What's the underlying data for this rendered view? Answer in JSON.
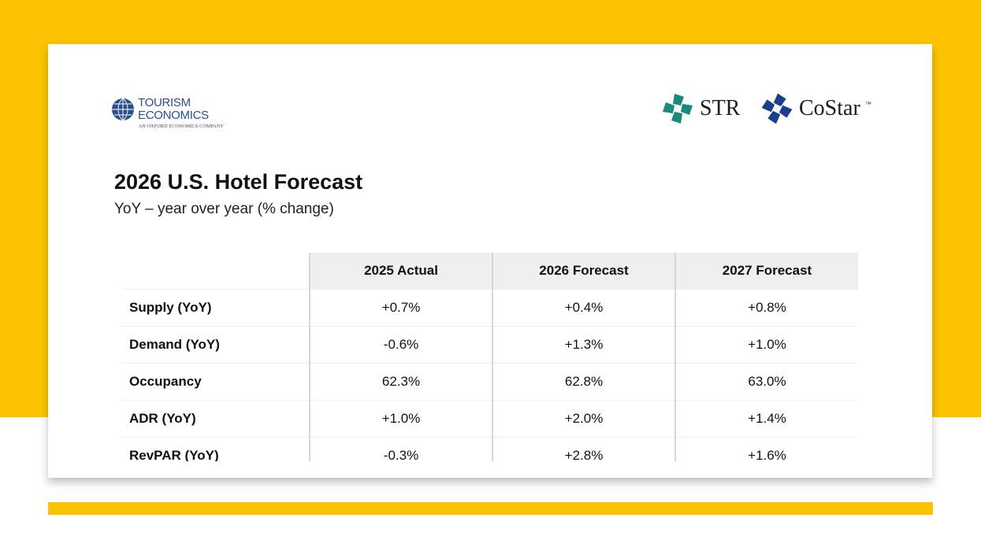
{
  "header": {
    "left_logo": {
      "line1": "TOURISM",
      "line2": "ECONOMICS",
      "tagline": "AN OXFORD ECONOMICS COMPANY"
    },
    "right_logos": [
      {
        "text": "STR"
      },
      {
        "text": "CoStar",
        "mark": "™"
      }
    ]
  },
  "title": "2026 U.S. Hotel Forecast",
  "subtitle": "YoY – year over year (% change)",
  "table": {
    "columns": [
      "2025 Actual",
      "2026 Forecast",
      "2027 Forecast"
    ],
    "rows": [
      [
        "Supply (YoY)",
        "+0.7%",
        "+0.4%",
        "+0.8%"
      ],
      [
        "Demand (YoY)",
        "-0.6%",
        "+1.3%",
        "+1.0%"
      ],
      [
        "Occupancy",
        "62.3%",
        "62.8%",
        "63.0%"
      ],
      [
        "ADR (YoY)",
        "+1.0%",
        "+2.0%",
        "+1.4%"
      ],
      [
        "RevPAR (YoY)",
        "-0.3%",
        "+2.8%",
        "+1.6%"
      ]
    ]
  }
}
